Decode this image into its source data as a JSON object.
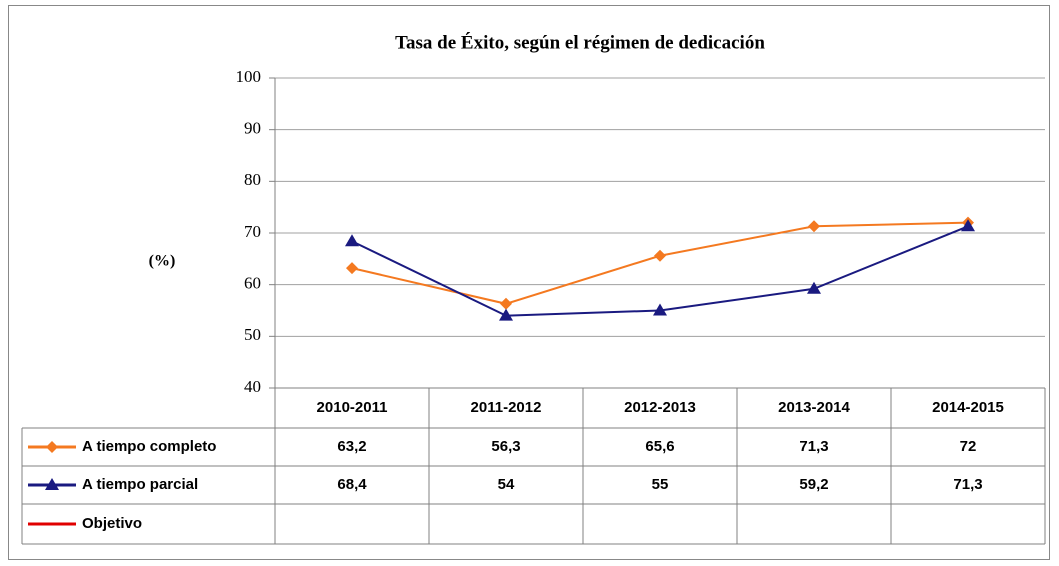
{
  "chart_data": {
    "type": "line",
    "title": "Tasa de Éxito, según el régimen de dedicación",
    "y_label": "(%)",
    "categories": [
      "2010-2011",
      "2011-2012",
      "2012-2013",
      "2013-2014",
      "2014-2015"
    ],
    "series": [
      {
        "name": "A tiempo completo",
        "color": "#f47920",
        "marker": "diamond",
        "values": [
          63.2,
          56.3,
          65.6,
          71.3,
          72
        ],
        "value_labels": [
          "63,2",
          "56,3",
          "65,6",
          "71,3",
          "72"
        ]
      },
      {
        "name": "A tiempo parcial",
        "color": "#1a1a80",
        "marker": "triangle",
        "values": [
          68.4,
          54,
          55,
          59.2,
          71.3
        ],
        "value_labels": [
          "68,4",
          "54",
          "55",
          "59,2",
          "71,3"
        ]
      },
      {
        "name": "Objetivo",
        "color": "#e00000",
        "marker": "none",
        "values": [
          null,
          null,
          null,
          null,
          null
        ]
      }
    ],
    "ylim": [
      40,
      100
    ],
    "yticks": [
      40,
      50,
      60,
      70,
      80,
      90,
      100
    ],
    "grid": true,
    "data_table": true
  }
}
